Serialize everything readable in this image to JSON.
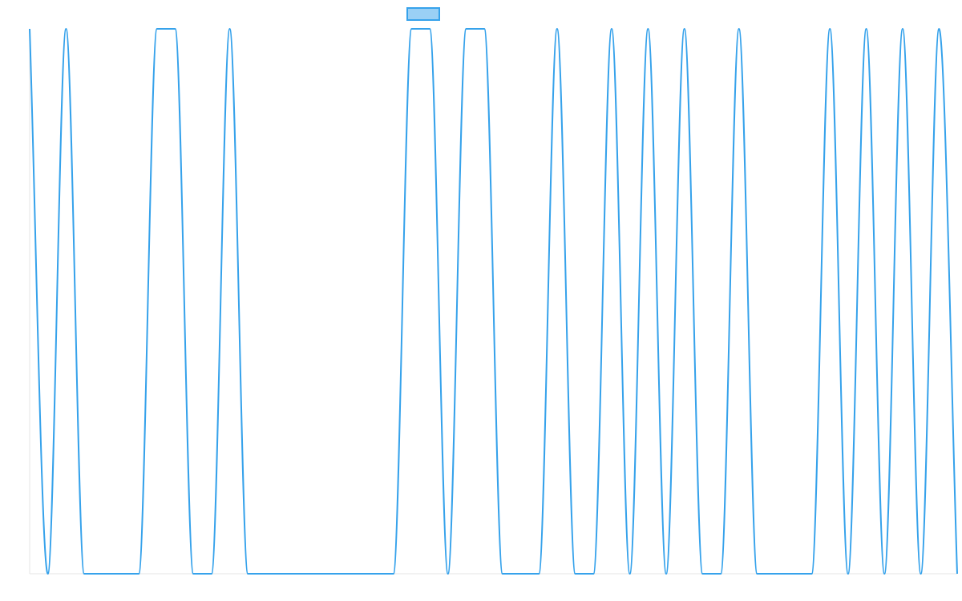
{
  "chart_data": {
    "type": "line",
    "categories": [
      null,
      null,
      null,
      null,
      null,
      null,
      null,
      null,
      null,
      null,
      null,
      null,
      null,
      null,
      null,
      null,
      null,
      null,
      null,
      null,
      null,
      null,
      null,
      null,
      null,
      null,
      null,
      null,
      null,
      null,
      null,
      null,
      null,
      null,
      null,
      null,
      null,
      null,
      null,
      null,
      null,
      null,
      null,
      null,
      null,
      null,
      null,
      null,
      null,
      null,
      null,
      null
    ],
    "series": [
      {
        "color": "#36a2eb",
        "fill": "rgba(54,162,235,0.5)",
        "values": [
          1,
          0,
          1,
          0,
          0,
          0,
          0,
          1,
          1,
          0,
          0,
          1,
          0,
          0,
          0,
          0,
          0,
          0,
          0,
          0,
          0,
          1,
          1,
          0,
          1,
          1,
          0,
          0,
          0,
          1,
          0,
          0,
          1,
          0,
          1,
          0,
          1,
          0,
          0,
          1,
          0,
          0,
          0,
          0,
          1,
          0,
          1,
          0,
          1,
          0,
          1,
          0
        ]
      }
    ],
    "ylim": [
      0,
      1
    ],
    "legend": "top"
  }
}
